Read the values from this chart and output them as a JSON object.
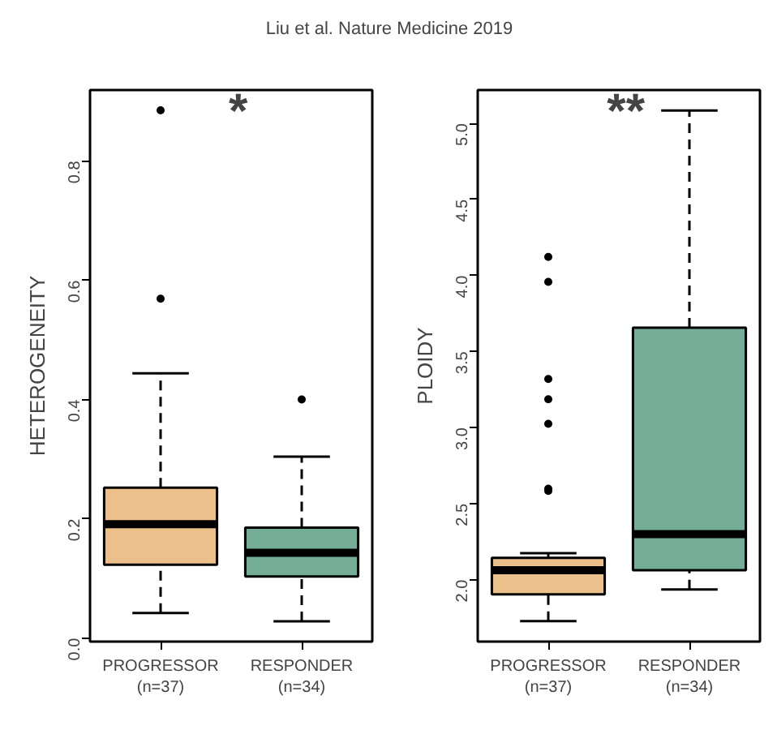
{
  "chart_data": [
    {
      "type": "box",
      "title": "Liu et al. Nature Medicine 2019",
      "ylabel": "HETEROGENEITY",
      "categories": [
        "PROGRESSOR\n(n=37)",
        "RESPONDER\n(n=34)"
      ],
      "colors": [
        "#ecc08b",
        "#74ae96"
      ],
      "boxes": [
        {
          "low": 0.042,
          "q1": 0.123,
          "median": 0.191,
          "q3": 0.252,
          "high": 0.444,
          "outliers": [
            0.569,
            0.885
          ]
        },
        {
          "low": 0.028,
          "q1": 0.103,
          "median": 0.143,
          "q3": 0.185,
          "high": 0.304,
          "outliers": [
            0.4
          ]
        }
      ],
      "ylim": [
        -0.006,
        0.919
      ],
      "yticks": [
        "0.0",
        0.2,
        0.4,
        0.6,
        0.8
      ],
      "grid": false,
      "annotations": [
        "*"
      ]
    },
    {
      "type": "box",
      "ylabel": "PLOIDY",
      "categories": [
        "PROGRESSOR\n(n=37)",
        "RESPONDER\n(n=34)"
      ],
      "colors": [
        "#ecc08b",
        "#74ae96"
      ],
      "boxes": [
        {
          "low": 1.727,
          "q1": 1.904,
          "median": 2.062,
          "q3": 2.144,
          "high": 2.174,
          "outliers": [
            2.584,
            2.598,
            3.025,
            3.186,
            3.319,
            3.958,
            4.122
          ]
        },
        {
          "low": 1.935,
          "q1": 2.062,
          "median": 2.3,
          "q3": 3.657,
          "high": 5.085
        }
      ],
      "ylim": [
        1.593,
        5.219
      ],
      "yticks": [
        {
          "value": 2,
          "label": "2.0"
        },
        2.5,
        {
          "value": 3,
          "label": "3.0"
        },
        3.5,
        {
          "value": 4,
          "label": "4.0"
        },
        4.5,
        {
          "value": 5,
          "label": "5.0"
        }
      ],
      "grid": false,
      "annotations": [
        "**"
      ]
    }
  ]
}
